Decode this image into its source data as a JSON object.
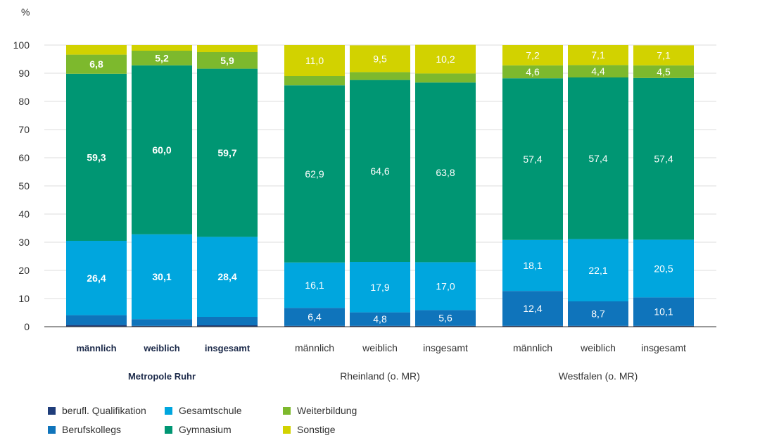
{
  "chart_data": {
    "type": "bar",
    "stacked": true,
    "ylabel": "%",
    "ylim": [
      0,
      100
    ],
    "yticks": [
      0,
      10,
      20,
      30,
      40,
      50,
      60,
      70,
      80,
      90,
      100
    ],
    "grid": true,
    "legend_position": "bottom",
    "groups": [
      {
        "name": "Metropole Ruhr",
        "bold": true,
        "categories": [
          "männlich",
          "weiblich",
          "insgesamt"
        ]
      },
      {
        "name": "Rheinland (o. MR)",
        "bold": false,
        "categories": [
          "männlich",
          "weiblich",
          "insgesamt"
        ]
      },
      {
        "name": "Westfalen (o. MR)",
        "bold": false,
        "categories": [
          "männlich",
          "weiblich",
          "insgesamt"
        ]
      }
    ],
    "series": [
      {
        "name": "berufl. Qualifikation",
        "color": "#1f3d7a",
        "values": [
          0.6,
          0.3,
          0.5,
          0.3,
          0.3,
          0.3,
          0.3,
          0.3,
          0.3
        ],
        "labels": [
          "",
          "",
          "",
          "",
          "",
          "",
          "",
          "",
          ""
        ]
      },
      {
        "name": "Berufskollegs",
        "color": "#0f74bb",
        "values": [
          3.5,
          2.4,
          3.0,
          6.4,
          4.8,
          5.6,
          12.4,
          8.7,
          10.1
        ],
        "labels": [
          "",
          "",
          "",
          "6,4",
          "4,8",
          "5,6",
          "12,4",
          "8,7",
          "10,1"
        ]
      },
      {
        "name": "Gesamtschule",
        "color": "#00a6de",
        "values": [
          26.4,
          30.1,
          28.4,
          16.1,
          17.9,
          17.0,
          18.1,
          22.1,
          20.5
        ],
        "labels": [
          "26,4",
          "30,1",
          "28,4",
          "16,1",
          "17,9",
          "17,0",
          "18,1",
          "22,1",
          "20,5"
        ]
      },
      {
        "name": "Gymnasium",
        "color": "#009673",
        "values": [
          59.3,
          60.0,
          59.7,
          62.9,
          64.6,
          63.8,
          57.4,
          57.4,
          57.4
        ],
        "labels": [
          "59,3",
          "60,0",
          "59,7",
          "62,9",
          "64,6",
          "63,8",
          "57,4",
          "57,4",
          "57,4"
        ]
      },
      {
        "name": "Weiterbildung",
        "color": "#7db92d",
        "values": [
          6.8,
          5.2,
          5.9,
          3.3,
          2.8,
          3.2,
          4.6,
          4.4,
          4.5
        ],
        "labels": [
          "6,8",
          "5,2",
          "5,9",
          "",
          "",
          "",
          "4,6",
          "4,4",
          "4,5"
        ]
      },
      {
        "name": "Sonstige",
        "color": "#d2d200",
        "values": [
          3.4,
          2.0,
          2.5,
          11.0,
          9.5,
          10.2,
          7.2,
          7.1,
          7.1
        ],
        "labels": [
          "",
          "",
          "",
          "11,0",
          "9,5",
          "10,2",
          "7,2",
          "7,1",
          "7,1"
        ]
      }
    ],
    "legend_order": [
      "berufl. Qualifikation",
      "Gesamtschule",
      "Weiterbildung",
      "Berufskollegs",
      "Gymnasium",
      "Sonstige"
    ]
  }
}
